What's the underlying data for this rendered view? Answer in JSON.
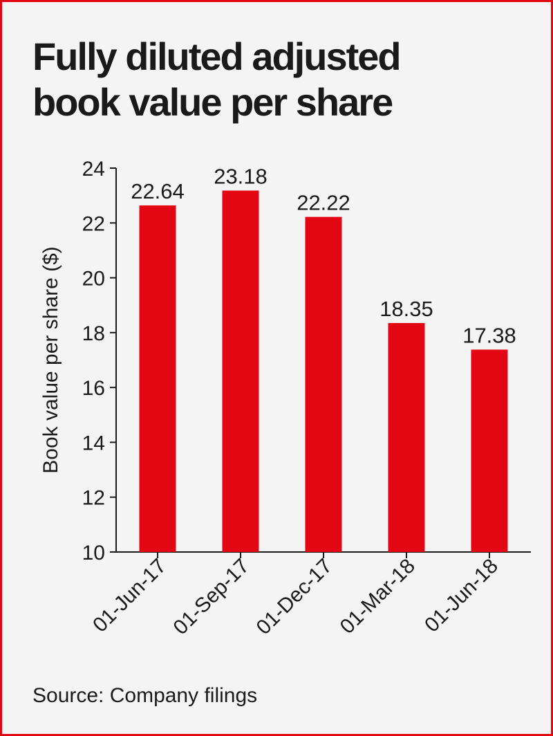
{
  "title": "Fully diluted adjusted\nbook value per share",
  "source": "Source: Company filings",
  "colors": {
    "bar": "#e30613",
    "border": "#e30613",
    "background": "#f4f4f4",
    "text": "#1a1a1a"
  },
  "chart_data": {
    "type": "bar",
    "title": "Fully diluted adjusted book value per share",
    "categories": [
      "01-Jun-17",
      "01-Sep-17",
      "01-Dec-17",
      "01-Mar-18",
      "01-Jun-18"
    ],
    "values": [
      22.64,
      23.18,
      22.22,
      18.35,
      17.38
    ],
    "data_labels": [
      "22.64",
      "23.18",
      "22.22",
      "18.35",
      "17.38"
    ],
    "xlabel": "",
    "ylabel": "Book value per share ($)",
    "ylim": [
      10,
      24
    ],
    "yticks": [
      10,
      12,
      14,
      16,
      18,
      20,
      22,
      24
    ],
    "grid": false,
    "legend": "none"
  }
}
